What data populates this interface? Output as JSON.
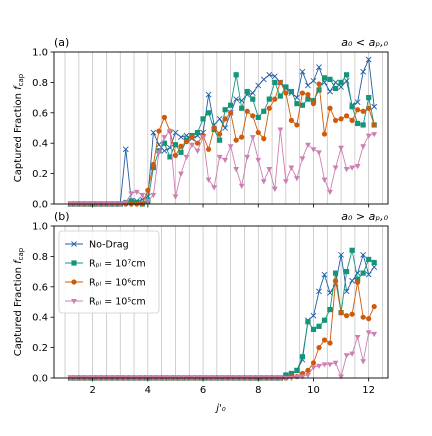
{
  "colors": {
    "No-Drag": "#1f5fa8",
    "Rpl7": "#14957a",
    "Rpl6": "#cf5a0a",
    "Rpl5": "#cd7fb2",
    "grid": "#bdbdbd",
    "axis": "#000000"
  },
  "chart_data": [
    {
      "type": "line",
      "panel_label": "(a)",
      "title_right": "a₀ < aₚ,₀",
      "xlabel": "",
      "ylabel": "Captured Fraction f_cap",
      "ylim": [
        0.0,
        1.0
      ],
      "xlim": [
        0.6,
        12.7
      ],
      "yticks": [
        "0.0",
        "0.2",
        "0.4",
        "0.6",
        "0.8",
        "1.0"
      ],
      "xticks": [],
      "grid": "vertical",
      "x": [
        1.2,
        1.4,
        1.6,
        1.8,
        2.0,
        2.2,
        2.4,
        2.6,
        2.8,
        3.0,
        3.2,
        3.4,
        3.6,
        3.8,
        4.0,
        4.2,
        4.4,
        4.6,
        4.8,
        5.0,
        5.2,
        5.4,
        5.6,
        5.8,
        6.0,
        6.2,
        6.4,
        6.6,
        6.8,
        7.0,
        7.2,
        7.4,
        7.6,
        7.8,
        8.0,
        8.2,
        8.4,
        8.6,
        8.8,
        9.0,
        9.2,
        9.4,
        9.6,
        9.8,
        10.0,
        10.2,
        10.4,
        10.6,
        10.8,
        11.0,
        11.2,
        11.4,
        11.6,
        11.8,
        12.0,
        12.2
      ],
      "series": [
        {
          "name": "No-Drag",
          "color_key": "No-Drag",
          "marker": "x",
          "values": [
            0,
            0,
            0,
            0,
            0,
            0,
            0,
            0,
            0,
            0,
            0.36,
            0.02,
            0.02,
            0.03,
            0.05,
            0.47,
            0.39,
            0.35,
            0.37,
            0.47,
            0.44,
            0.45,
            0.43,
            0.45,
            0.47,
            0.72,
            0.52,
            0.56,
            0.5,
            0.6,
            0.69,
            0.68,
            0.72,
            0.73,
            0.78,
            0.82,
            0.85,
            0.84,
            0.8,
            0.76,
            0.73,
            0.7,
            0.87,
            0.78,
            0.81,
            0.9,
            0.8,
            0.74,
            0.8,
            0.77,
            0.81,
            0.65,
            0.67,
            0.87,
            0.95,
            0.64
          ]
        },
        {
          "name": "Rₚₗ = 10⁷cm",
          "color_key": "Rpl7",
          "marker": "s",
          "values": [
            0,
            0,
            0,
            0,
            0,
            0,
            0,
            0,
            0,
            0,
            0.01,
            0.02,
            0.01,
            0,
            0.02,
            0.24,
            0.35,
            0.4,
            0.31,
            0.39,
            0.34,
            0.42,
            0.45,
            0.47,
            0.56,
            0.6,
            0.49,
            0.42,
            0.62,
            0.65,
            0.85,
            0.63,
            0.74,
            0.69,
            0.57,
            0.61,
            0.69,
            0.8,
            0.71,
            0.77,
            0.74,
            0.66,
            0.65,
            0.69,
            0.68,
            0.75,
            0.83,
            0.82,
            0.76,
            0.8,
            0.85,
            0.64,
            0.53,
            0.52,
            0.7,
            0.52
          ]
        },
        {
          "name": "Rₚₗ = 10⁶cm",
          "color_key": "Rpl6",
          "marker": "o",
          "values": [
            0,
            0,
            0,
            0,
            0,
            0,
            0,
            0,
            0,
            0,
            0,
            0,
            0,
            0,
            0.09,
            0.26,
            0.48,
            0.57,
            0.48,
            0.32,
            0.38,
            0.41,
            0.44,
            0.4,
            0.45,
            0.36,
            0.5,
            0.46,
            0.56,
            0.6,
            0.42,
            0.44,
            0.61,
            0.58,
            0.47,
            0.43,
            0.63,
            0.69,
            0.8,
            0.73,
            0.55,
            0.52,
            0.73,
            0.72,
            0.66,
            0.79,
            0.46,
            0.63,
            0.55,
            0.56,
            0.58,
            0.55,
            0.62,
            0.61,
            0.63,
            0.52
          ]
        },
        {
          "name": "Rₚₗ = 10⁵cm",
          "color_key": "Rpl5",
          "marker": "v",
          "values": [
            0,
            0,
            0,
            0,
            0,
            0,
            0,
            0,
            0,
            0,
            0.01,
            0.07,
            0.08,
            0.06,
            0.02,
            0.06,
            0.34,
            0.44,
            0.48,
            0.05,
            0.2,
            0.31,
            0.39,
            0.35,
            0.44,
            0.16,
            0.11,
            0.31,
            0.29,
            0.38,
            0.23,
            0.12,
            0.31,
            0.44,
            0.29,
            0.15,
            0.23,
            0.1,
            0.49,
            0.15,
            0.24,
            0.17,
            0.3,
            0.39,
            0.36,
            0.34,
            0.16,
            0.08,
            0.24,
            0.37,
            0.23,
            0.24,
            0.25,
            0.38,
            0.45,
            0.46
          ]
        }
      ]
    },
    {
      "type": "line",
      "panel_label": "(b)",
      "title_right": "a₀ > aₚ,₀",
      "xlabel": "j'₀",
      "ylabel": "Captured Fraction f_cap",
      "ylim": [
        0.0,
        1.0
      ],
      "xlim": [
        0.6,
        12.7
      ],
      "yticks": [
        "0.0",
        "0.2",
        "0.4",
        "0.6",
        "0.8",
        "1.0"
      ],
      "xticks": [
        "2",
        "4",
        "6",
        "8",
        "10",
        "12"
      ],
      "grid": "vertical",
      "legend": "upper-left",
      "x": [
        1.2,
        1.4,
        1.6,
        1.8,
        2.0,
        2.2,
        2.4,
        2.6,
        2.8,
        3.0,
        3.2,
        3.4,
        3.6,
        3.8,
        4.0,
        4.2,
        4.4,
        4.6,
        4.8,
        5.0,
        5.2,
        5.4,
        5.6,
        5.8,
        6.0,
        6.2,
        6.4,
        6.6,
        6.8,
        7.0,
        7.2,
        7.4,
        7.6,
        7.8,
        8.0,
        8.2,
        8.4,
        8.6,
        8.8,
        9.0,
        9.2,
        9.4,
        9.6,
        9.8,
        10.0,
        10.2,
        10.4,
        10.6,
        10.8,
        11.0,
        11.2,
        11.4,
        11.6,
        11.8,
        12.0,
        12.2
      ],
      "series": [
        {
          "name": "No-Drag",
          "color_key": "No-Drag",
          "marker": "x",
          "values": [
            0,
            0,
            0,
            0,
            0,
            0,
            0,
            0,
            0,
            0,
            0,
            0,
            0,
            0,
            0,
            0,
            0,
            0,
            0,
            0,
            0,
            0,
            0,
            0,
            0,
            0,
            0,
            0,
            0,
            0,
            0,
            0,
            0,
            0,
            0,
            0,
            0,
            0,
            0,
            0.01,
            0.02,
            0.05,
            0.12,
            0.38,
            0.41,
            0.57,
            0.68,
            0.56,
            0.62,
            0.81,
            0.57,
            0.64,
            0.69,
            0.81,
            0.68,
            0.73
          ]
        },
        {
          "name": "Rₚₗ = 10⁷cm",
          "color_key": "Rpl7",
          "marker": "s",
          "values": [
            0,
            0,
            0,
            0,
            0,
            0,
            0,
            0,
            0,
            0,
            0,
            0,
            0,
            0,
            0,
            0,
            0,
            0,
            0,
            0,
            0,
            0,
            0,
            0,
            0,
            0,
            0,
            0,
            0,
            0,
            0,
            0,
            0,
            0,
            0,
            0,
            0,
            0,
            0,
            0.02,
            0.03,
            0.05,
            0.14,
            0.37,
            0.32,
            0.34,
            0.38,
            0.45,
            0.69,
            0.43,
            0.7,
            0.84,
            0.65,
            0.69,
            0.78,
            0.76
          ]
        },
        {
          "name": "Rₚₗ = 10⁶cm",
          "color_key": "Rpl6",
          "marker": "o",
          "values": [
            0,
            0,
            0,
            0,
            0,
            0,
            0,
            0,
            0,
            0,
            0,
            0,
            0,
            0,
            0,
            0,
            0,
            0,
            0,
            0,
            0,
            0,
            0,
            0,
            0,
            0,
            0,
            0,
            0,
            0,
            0,
            0,
            0,
            0,
            0,
            0,
            0,
            0,
            0,
            0,
            0.01,
            0.01,
            0.03,
            0.05,
            0.1,
            0.2,
            0.25,
            0.23,
            0.64,
            0.43,
            0.41,
            0.42,
            0.63,
            0.4,
            0.39,
            0.47
          ]
        },
        {
          "name": "Rₚₗ = 10⁵cm",
          "color_key": "Rpl5",
          "marker": "v",
          "values": [
            0,
            0,
            0,
            0,
            0,
            0,
            0,
            0,
            0,
            0,
            0,
            0,
            0,
            0,
            0,
            0,
            0,
            0,
            0,
            0,
            0,
            0,
            0,
            0,
            0,
            0,
            0,
            0,
            0,
            0,
            0,
            0,
            0,
            0,
            0,
            0,
            0,
            0,
            0,
            0,
            0,
            0.01,
            0.01,
            0.02,
            0.07,
            0.08,
            0.09,
            0.09,
            0.1,
            0.01,
            0.15,
            0.16,
            0.27,
            0.11,
            0.3,
            0.29
          ]
        }
      ]
    }
  ]
}
